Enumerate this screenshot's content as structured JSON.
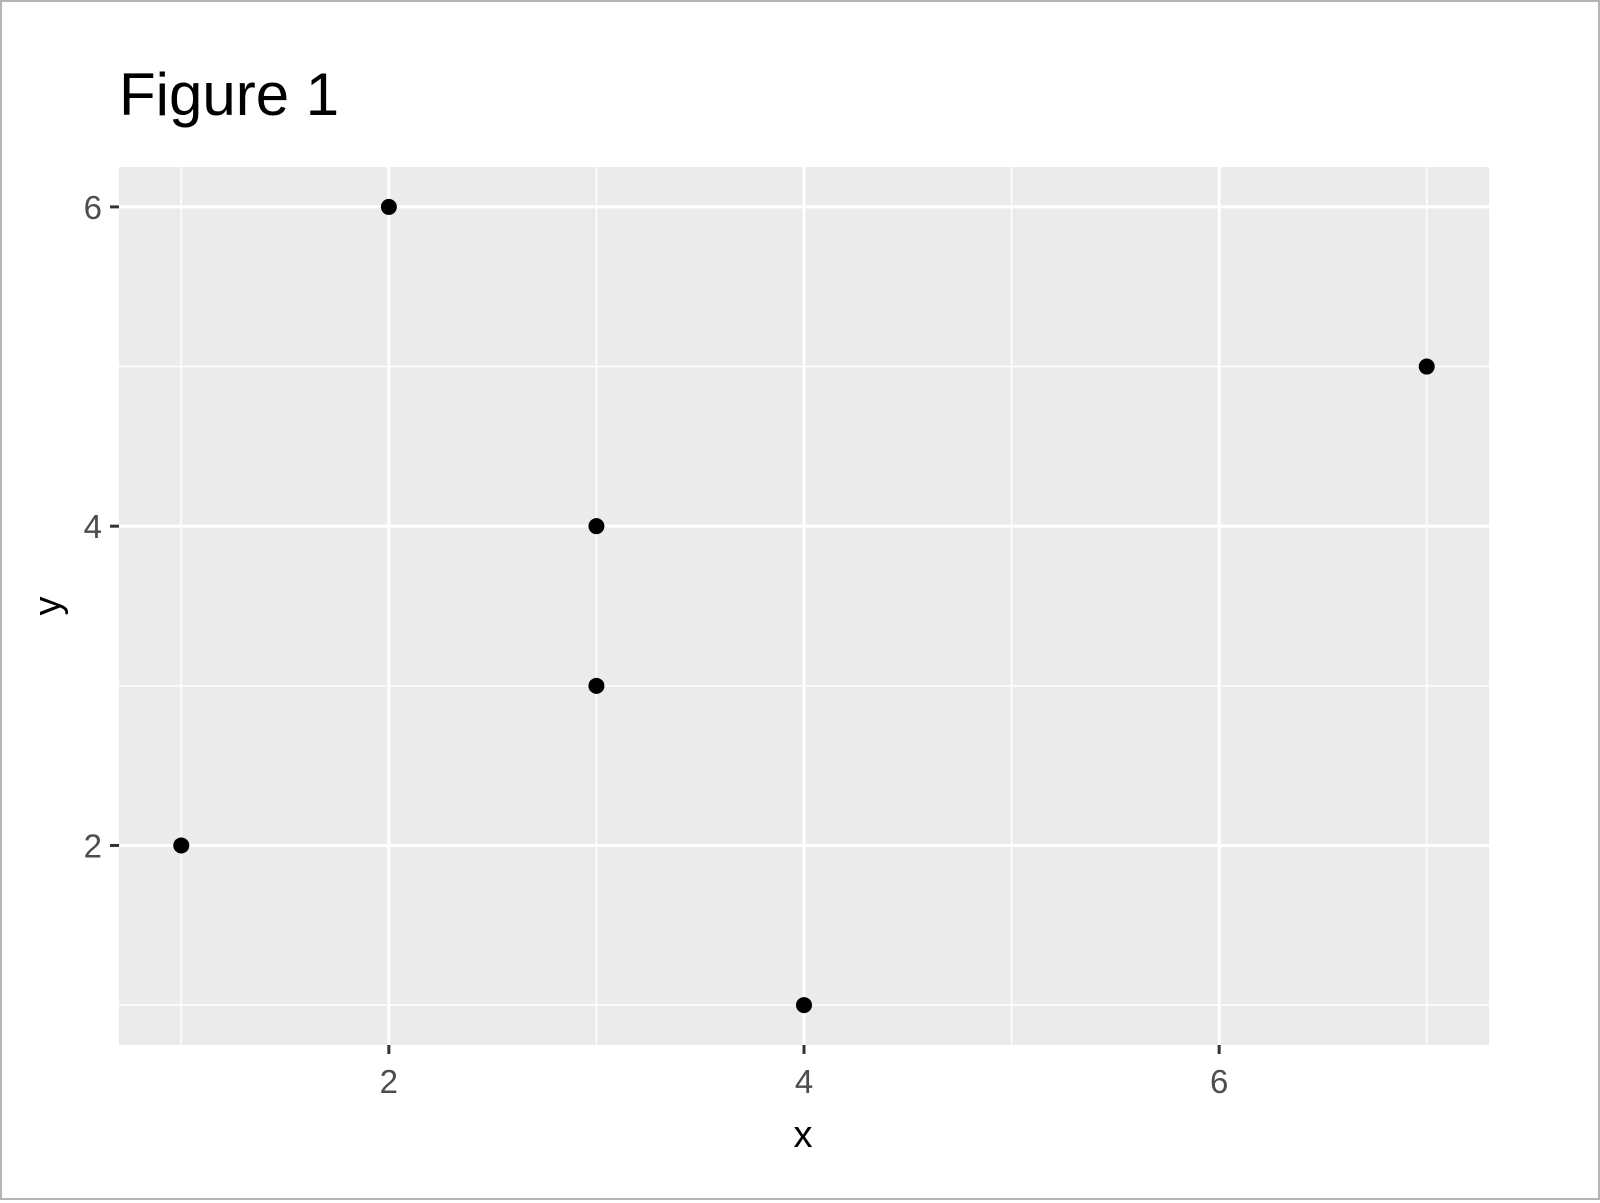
{
  "chart_data": {
    "type": "scatter",
    "title": "Figure 1",
    "xlabel": "x",
    "ylabel": "y",
    "xlim": [
      0.7,
      7.3
    ],
    "ylim": [
      0.75,
      6.25
    ],
    "x_major_ticks": [
      2,
      4,
      6
    ],
    "x_minor_ticks": [
      1,
      3,
      5,
      7
    ],
    "y_major_ticks": [
      2,
      4,
      6
    ],
    "y_minor_ticks": [
      1,
      3,
      5
    ],
    "grid": true,
    "legend": "none",
    "points": [
      {
        "x": 1,
        "y": 2
      },
      {
        "x": 2,
        "y": 6
      },
      {
        "x": 3,
        "y": 4
      },
      {
        "x": 3,
        "y": 3
      },
      {
        "x": 4,
        "y": 1
      },
      {
        "x": 7,
        "y": 5
      }
    ]
  },
  "colors": {
    "panel_background": "#ebebeb",
    "grid_line": "#ffffff",
    "point": "#000000",
    "tick_label": "#4d4d4d",
    "axis_title": "#000000",
    "frame_border": "#b5b5b5"
  }
}
